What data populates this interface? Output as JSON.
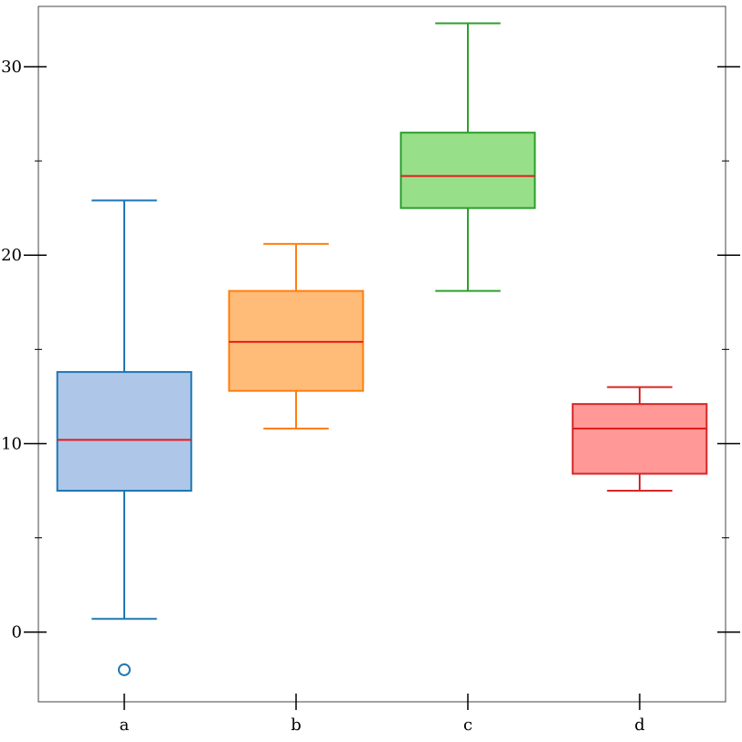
{
  "chart_data": {
    "type": "box",
    "title": "",
    "xlabel": "",
    "ylabel": "",
    "categories": [
      "a",
      "b",
      "c",
      "d"
    ],
    "ylim": [
      -3.7,
      33.2
    ],
    "yticks_major": [
      0,
      10,
      20,
      30
    ],
    "yticks_minor": [
      5,
      15,
      25
    ],
    "yticklabels": [
      "0",
      "10",
      "20",
      "30"
    ],
    "grid": false,
    "legend": "none",
    "median_color": "#e41a1c",
    "boxes": [
      {
        "category": "a",
        "whisker_low": 0.7,
        "q1": 7.5,
        "median": 10.2,
        "q3": 13.8,
        "whisker_high": 22.9,
        "outliers": [
          -2.0
        ],
        "fill": "#aec7e8",
        "stroke": "#1f77b4"
      },
      {
        "category": "b",
        "whisker_low": 10.8,
        "q1": 12.8,
        "median": 15.4,
        "q3": 18.1,
        "whisker_high": 20.6,
        "outliers": [],
        "fill": "#ffbb78",
        "stroke": "#ff7f0e"
      },
      {
        "category": "c",
        "whisker_low": 18.1,
        "q1": 22.5,
        "median": 24.2,
        "q3": 26.5,
        "whisker_high": 32.3,
        "outliers": [],
        "fill": "#98df8a",
        "stroke": "#2ca02c"
      },
      {
        "category": "d",
        "whisker_low": 7.5,
        "q1": 8.4,
        "median": 10.8,
        "q3": 12.1,
        "whisker_high": 13.0,
        "outliers": [],
        "fill": "#ff9896",
        "stroke": "#d62728"
      }
    ]
  }
}
